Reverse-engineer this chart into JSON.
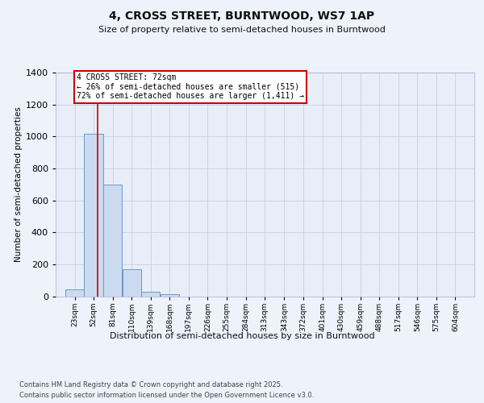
{
  "title1": "4, CROSS STREET, BURNTWOOD, WS7 1AP",
  "title2": "Size of property relative to semi-detached houses in Burntwood",
  "xlabel": "Distribution of semi-detached houses by size in Burntwood",
  "ylabel": "Number of semi-detached properties",
  "bin_starts": [
    23,
    52,
    81,
    110,
    139,
    168,
    197,
    226,
    255,
    284,
    313,
    343,
    372,
    401,
    430,
    459,
    488,
    517,
    546,
    575,
    604
  ],
  "bar_heights": [
    45,
    1015,
    700,
    170,
    30,
    15,
    0,
    0,
    0,
    0,
    0,
    0,
    0,
    0,
    0,
    0,
    0,
    0,
    0,
    0,
    0
  ],
  "bar_color": "#ccdaf0",
  "bar_edge_color": "#6699cc",
  "property_size": 72,
  "vline_color": "#cc0000",
  "annotation_text": "4 CROSS STREET: 72sqm\n← 26% of semi-detached houses are smaller (515)\n72% of semi-detached houses are larger (1,411) →",
  "annotation_box_facecolor": "#ffffff",
  "annotation_box_edgecolor": "#cc0000",
  "ylim": [
    0,
    1400
  ],
  "yticks": [
    0,
    200,
    400,
    600,
    800,
    1000,
    1200,
    1400
  ],
  "bg_color": "#eef2fb",
  "plot_bg_color": "#e8eef8",
  "grid_color": "#c8d0e0",
  "footer1": "Contains HM Land Registry data © Crown copyright and database right 2025.",
  "footer2": "Contains public sector information licensed under the Open Government Licence v3.0."
}
